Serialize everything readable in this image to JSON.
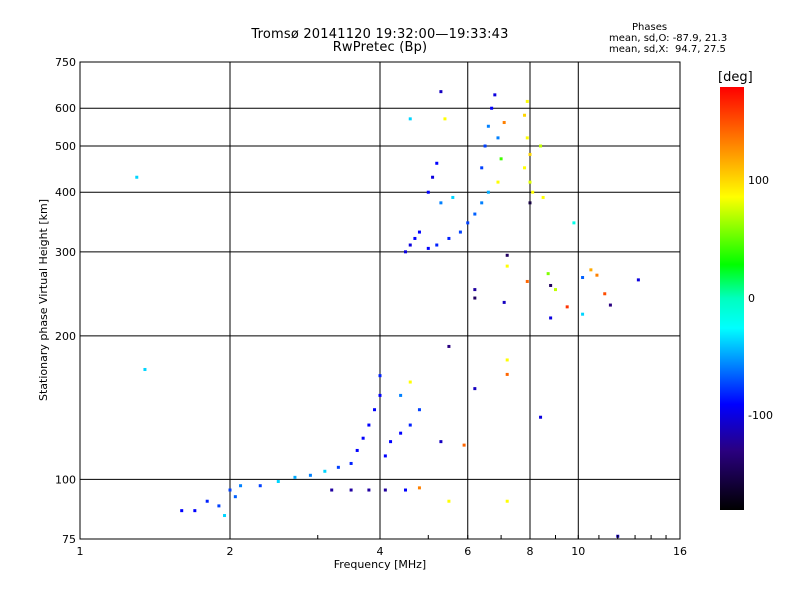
{
  "header": {
    "title_line1": "Tromsø 20141120 19:32:00—19:33:43",
    "title_line2": "RwPretec (Bp)"
  },
  "stats": {
    "heading": "Phases",
    "o_line": "mean, sd,O: -87.9, 21.3",
    "x_line": "mean, sd,X:  94.7, 27.5"
  },
  "colorbar": {
    "unit": "[deg]",
    "ticks": [
      {
        "value": 100,
        "label": "100"
      },
      {
        "value": 0,
        "label": "0"
      },
      {
        "value": -100,
        "label": "-100"
      }
    ],
    "range": [
      -180,
      180
    ],
    "colors": [
      "#ff0000",
      "#ffff00",
      "#00ff00",
      "#00ffff",
      "#0000ff",
      "#000000"
    ]
  },
  "chart_data": {
    "type": "scatter",
    "title": "Tromsø 20141120 19:32:00—19:33:43",
    "subtitle": "RwPretec (Bp)",
    "xlabel": "Frequency [MHz]",
    "ylabel": "Stationary phase Virtual Height [km]",
    "x_scale": "log",
    "y_scale": "log",
    "xlim": [
      1,
      16
    ],
    "ylim": [
      75,
      750
    ],
    "x_ticks": [
      1,
      2,
      4,
      6,
      8,
      10,
      16
    ],
    "x_tick_labels": [
      "1",
      "2",
      "4",
      "6",
      "8",
      "10",
      "16"
    ],
    "y_ticks": [
      75,
      100,
      200,
      300,
      400,
      500,
      600,
      750
    ],
    "y_tick_labels": [
      "75",
      "100",
      "200",
      "300",
      "400",
      "500",
      "600",
      "750"
    ],
    "grid": true,
    "color_by": "phase [deg]",
    "points": [
      {
        "x": 1.3,
        "y": 430,
        "c": -40
      },
      {
        "x": 1.35,
        "y": 170,
        "c": -40
      },
      {
        "x": 1.6,
        "y": 86,
        "c": -100
      },
      {
        "x": 1.7,
        "y": 86,
        "c": -100
      },
      {
        "x": 1.8,
        "y": 90,
        "c": -90
      },
      {
        "x": 1.9,
        "y": 88,
        "c": -80
      },
      {
        "x": 1.95,
        "y": 84,
        "c": -40
      },
      {
        "x": 2.0,
        "y": 95,
        "c": -80
      },
      {
        "x": 2.05,
        "y": 92,
        "c": -70
      },
      {
        "x": 2.1,
        "y": 97,
        "c": -60
      },
      {
        "x": 2.3,
        "y": 97,
        "c": -80
      },
      {
        "x": 2.5,
        "y": 99,
        "c": -40
      },
      {
        "x": 2.7,
        "y": 101,
        "c": -50
      },
      {
        "x": 2.9,
        "y": 102,
        "c": -60
      },
      {
        "x": 3.1,
        "y": 104,
        "c": -40
      },
      {
        "x": 3.3,
        "y": 106,
        "c": -80
      },
      {
        "x": 3.5,
        "y": 108,
        "c": -90
      },
      {
        "x": 3.6,
        "y": 115,
        "c": -100
      },
      {
        "x": 3.7,
        "y": 122,
        "c": -100
      },
      {
        "x": 3.8,
        "y": 130,
        "c": -100
      },
      {
        "x": 3.9,
        "y": 140,
        "c": -100
      },
      {
        "x": 4.0,
        "y": 150,
        "c": -100
      },
      {
        "x": 4.0,
        "y": 165,
        "c": -90
      },
      {
        "x": 4.1,
        "y": 112,
        "c": -100
      },
      {
        "x": 4.2,
        "y": 120,
        "c": -100
      },
      {
        "x": 4.4,
        "y": 125,
        "c": -100
      },
      {
        "x": 4.6,
        "y": 130,
        "c": -90
      },
      {
        "x": 4.8,
        "y": 140,
        "c": -80
      },
      {
        "x": 4.4,
        "y": 150,
        "c": -60
      },
      {
        "x": 4.6,
        "y": 160,
        "c": 100
      },
      {
        "x": 3.2,
        "y": 95,
        "c": -130
      },
      {
        "x": 3.5,
        "y": 95,
        "c": -130
      },
      {
        "x": 3.8,
        "y": 95,
        "c": -130
      },
      {
        "x": 4.1,
        "y": 95,
        "c": -130
      },
      {
        "x": 4.5,
        "y": 95,
        "c": -100
      },
      {
        "x": 4.8,
        "y": 96,
        "c": 130
      },
      {
        "x": 5.5,
        "y": 90,
        "c": 100
      },
      {
        "x": 5.3,
        "y": 120,
        "c": -120
      },
      {
        "x": 5.5,
        "y": 190,
        "c": -140
      },
      {
        "x": 5.9,
        "y": 118,
        "c": 140
      },
      {
        "x": 6.2,
        "y": 155,
        "c": -120
      },
      {
        "x": 4.5,
        "y": 300,
        "c": -110
      },
      {
        "x": 4.6,
        "y": 310,
        "c": -110
      },
      {
        "x": 4.7,
        "y": 320,
        "c": -100
      },
      {
        "x": 4.8,
        "y": 330,
        "c": -100
      },
      {
        "x": 5.0,
        "y": 305,
        "c": -100
      },
      {
        "x": 5.2,
        "y": 310,
        "c": -90
      },
      {
        "x": 5.5,
        "y": 320,
        "c": -90
      },
      {
        "x": 5.8,
        "y": 330,
        "c": -80
      },
      {
        "x": 6.0,
        "y": 345,
        "c": -80
      },
      {
        "x": 6.2,
        "y": 360,
        "c": -70
      },
      {
        "x": 6.4,
        "y": 380,
        "c": -60
      },
      {
        "x": 6.6,
        "y": 400,
        "c": -50
      },
      {
        "x": 5.0,
        "y": 400,
        "c": -100
      },
      {
        "x": 5.1,
        "y": 430,
        "c": -110
      },
      {
        "x": 5.3,
        "y": 380,
        "c": -60
      },
      {
        "x": 5.6,
        "y": 390,
        "c": -40
      },
      {
        "x": 5.2,
        "y": 460,
        "c": -100
      },
      {
        "x": 5.4,
        "y": 570,
        "c": 100
      },
      {
        "x": 4.6,
        "y": 570,
        "c": -40
      },
      {
        "x": 5.3,
        "y": 650,
        "c": -120
      },
      {
        "x": 6.4,
        "y": 450,
        "c": -80
      },
      {
        "x": 6.5,
        "y": 500,
        "c": -80
      },
      {
        "x": 6.6,
        "y": 550,
        "c": -60
      },
      {
        "x": 6.7,
        "y": 600,
        "c": -100
      },
      {
        "x": 6.8,
        "y": 640,
        "c": -110
      },
      {
        "x": 6.9,
        "y": 520,
        "c": -60
      },
      {
        "x": 7.0,
        "y": 470,
        "c": 40
      },
      {
        "x": 6.9,
        "y": 420,
        "c": 100
      },
      {
        "x": 7.1,
        "y": 560,
        "c": 130
      },
      {
        "x": 7.9,
        "y": 620,
        "c": 100
      },
      {
        "x": 7.8,
        "y": 580,
        "c": 110
      },
      {
        "x": 7.9,
        "y": 520,
        "c": 100
      },
      {
        "x": 8.0,
        "y": 480,
        "c": 110
      },
      {
        "x": 7.8,
        "y": 450,
        "c": 100
      },
      {
        "x": 8.0,
        "y": 420,
        "c": 90
      },
      {
        "x": 8.1,
        "y": 400,
        "c": 100
      },
      {
        "x": 8.0,
        "y": 380,
        "c": -160
      },
      {
        "x": 8.4,
        "y": 500,
        "c": 80
      },
      {
        "x": 8.5,
        "y": 390,
        "c": 100
      },
      {
        "x": 9.8,
        "y": 345,
        "c": -20
      },
      {
        "x": 6.2,
        "y": 250,
        "c": -130
      },
      {
        "x": 6.2,
        "y": 240,
        "c": -150
      },
      {
        "x": 7.1,
        "y": 235,
        "c": -120
      },
      {
        "x": 7.2,
        "y": 295,
        "c": -150
      },
      {
        "x": 7.2,
        "y": 280,
        "c": 100
      },
      {
        "x": 7.9,
        "y": 260,
        "c": 140
      },
      {
        "x": 8.7,
        "y": 270,
        "c": 60
      },
      {
        "x": 8.8,
        "y": 255,
        "c": -150
      },
      {
        "x": 9.0,
        "y": 250,
        "c": 80
      },
      {
        "x": 8.8,
        "y": 218,
        "c": -110
      },
      {
        "x": 9.5,
        "y": 230,
        "c": 160
      },
      {
        "x": 10.2,
        "y": 265,
        "c": -70
      },
      {
        "x": 10.6,
        "y": 275,
        "c": 120
      },
      {
        "x": 10.9,
        "y": 268,
        "c": 130
      },
      {
        "x": 11.3,
        "y": 245,
        "c": 150
      },
      {
        "x": 11.6,
        "y": 232,
        "c": -140
      },
      {
        "x": 10.2,
        "y": 222,
        "c": -40
      },
      {
        "x": 13.2,
        "y": 262,
        "c": -110
      },
      {
        "x": 8.4,
        "y": 135,
        "c": -110
      },
      {
        "x": 7.2,
        "y": 178,
        "c": 100
      },
      {
        "x": 7.2,
        "y": 166,
        "c": 140
      },
      {
        "x": 7.2,
        "y": 90,
        "c": 100
      },
      {
        "x": 12.0,
        "y": 76,
        "c": -120
      }
    ]
  }
}
